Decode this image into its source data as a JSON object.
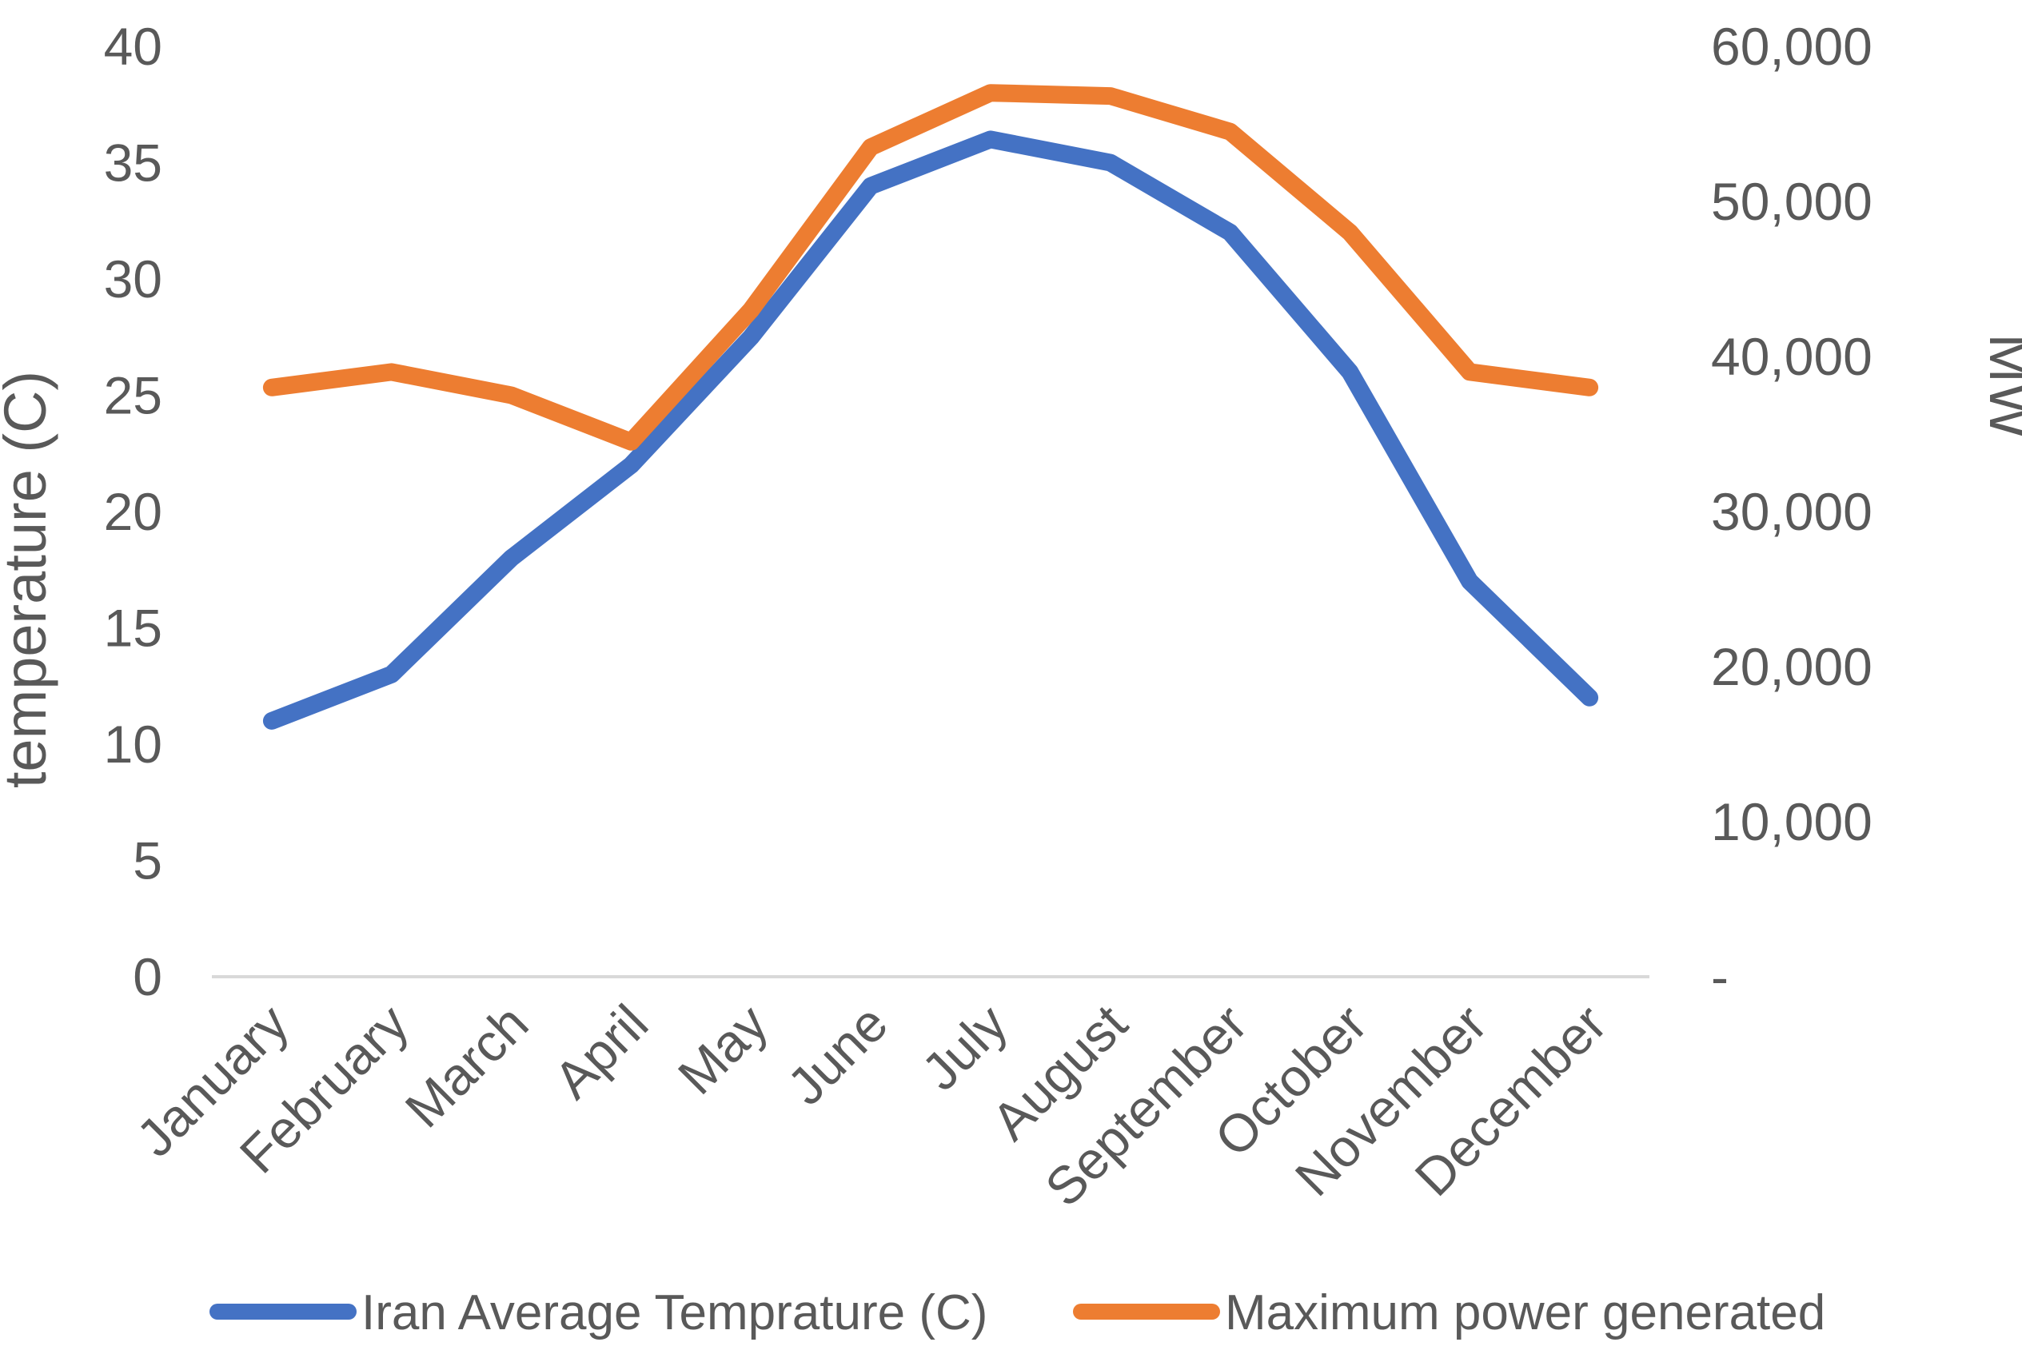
{
  "chart_data": {
    "type": "line",
    "title": "",
    "categories": [
      "January",
      "February",
      "March",
      "April",
      "May",
      "June",
      "July",
      "August",
      "September",
      "October",
      "November",
      "December"
    ],
    "series": [
      {
        "name": "Iran Average Temprature (C)",
        "axis": "left",
        "color": "#4472C4",
        "values": [
          11,
          13,
          18,
          22,
          27.5,
          34,
          36,
          35,
          32,
          26,
          17,
          12
        ]
      },
      {
        "name": "Maximum power generated",
        "axis": "right",
        "color": "#ED7D31",
        "values": [
          38000,
          39000,
          37500,
          34500,
          43000,
          53500,
          57000,
          56800,
          54500,
          48000,
          39000,
          38000
        ]
      }
    ],
    "left_axis": {
      "title": "temperature (C)",
      "min": 0,
      "max": 40,
      "step": 5,
      "tick_labels": [
        "0",
        "5",
        "10",
        "15",
        "20",
        "25",
        "30",
        "35",
        "40"
      ]
    },
    "right_axis": {
      "title": "MW",
      "min": 0,
      "max": 60000,
      "step": 10000,
      "tick_labels": [
        "-",
        "10,000",
        "20,000",
        "30,000",
        "40,000",
        "50,000",
        "60,000"
      ]
    },
    "legend_position": "bottom",
    "grid": false,
    "axis_text_color": "#595959",
    "baseline_color": "#D9D9D9",
    "background": "#FFFFFF"
  }
}
